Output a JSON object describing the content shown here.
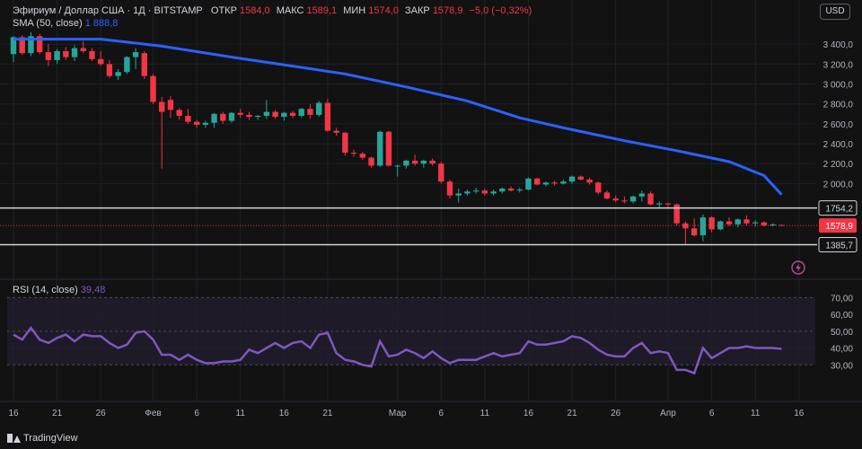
{
  "header": {
    "symbol": "Эфириум / Доллар США · 1Д · BITSTAMP",
    "open_label": "ОТКР",
    "open_value": "1584,0",
    "high_label": "МАКС",
    "high_value": "1589,1",
    "low_label": "МИН",
    "low_value": "1574,0",
    "close_label": "ЗАКР",
    "close_value": "1578,9",
    "change": "−5,0 (−0,32%)",
    "sma_label": "SMA (50, close)",
    "sma_value": "1 888,8",
    "rsi_label": "RSI (14, close)",
    "rsi_value": "39,48"
  },
  "currency": "USD",
  "branding": "TradingView",
  "colors": {
    "up": "#26a69a",
    "down": "#f23645",
    "sma": "#2962ff",
    "rsi": "#7e57c2",
    "bg": "#121212",
    "text": "#b2b5be"
  },
  "chart_data": [
    {
      "type": "candlestick",
      "title": "Эфириум / Доллар США · 1Д · BITSTAMP",
      "ylim": [
        1300,
        3600
      ],
      "yticks": [
        "3 400,0",
        "3 200,0",
        "3 000,0",
        "2 800,0",
        "2 600,0",
        "2 400,0",
        "2 200,0",
        "2 000,0"
      ],
      "ytick_values": [
        3400,
        3200,
        3000,
        2800,
        2600,
        2400,
        2200,
        2000
      ],
      "x_labels": [
        "16",
        "21",
        "26",
        "Фев",
        "6",
        "11",
        "16",
        "21",
        "Мар",
        "6",
        "11",
        "16",
        "21",
        "26",
        "Апр",
        "6",
        "11",
        "16"
      ],
      "x_label_days": [
        0,
        5,
        10,
        16,
        21,
        26,
        31,
        36,
        44,
        49,
        54,
        59,
        64,
        69,
        75,
        80,
        85,
        90
      ],
      "candles": [
        {
          "d": 0,
          "o": 3300,
          "h": 3480,
          "l": 3220,
          "c": 3470
        },
        {
          "d": 1,
          "o": 3470,
          "h": 3490,
          "l": 3290,
          "c": 3310
        },
        {
          "d": 2,
          "o": 3310,
          "h": 3520,
          "l": 3280,
          "c": 3480
        },
        {
          "d": 3,
          "o": 3480,
          "h": 3500,
          "l": 3300,
          "c": 3320
        },
        {
          "d": 4,
          "o": 3320,
          "h": 3400,
          "l": 3180,
          "c": 3240
        },
        {
          "d": 5,
          "o": 3240,
          "h": 3350,
          "l": 3200,
          "c": 3330
        },
        {
          "d": 6,
          "o": 3330,
          "h": 3370,
          "l": 3240,
          "c": 3270
        },
        {
          "d": 7,
          "o": 3270,
          "h": 3390,
          "l": 3230,
          "c": 3360
        },
        {
          "d": 8,
          "o": 3360,
          "h": 3430,
          "l": 3310,
          "c": 3330
        },
        {
          "d": 9,
          "o": 3330,
          "h": 3360,
          "l": 3230,
          "c": 3250
        },
        {
          "d": 10,
          "o": 3250,
          "h": 3330,
          "l": 3180,
          "c": 3200
        },
        {
          "d": 11,
          "o": 3200,
          "h": 3240,
          "l": 3060,
          "c": 3080
        },
        {
          "d": 12,
          "o": 3080,
          "h": 3150,
          "l": 3040,
          "c": 3120
        },
        {
          "d": 13,
          "o": 3120,
          "h": 3280,
          "l": 3100,
          "c": 3270
        },
        {
          "d": 14,
          "o": 3270,
          "h": 3360,
          "l": 3150,
          "c": 3320
        },
        {
          "d": 15,
          "o": 3310,
          "h": 3330,
          "l": 3050,
          "c": 3080
        },
        {
          "d": 16,
          "o": 3080,
          "h": 3100,
          "l": 2800,
          "c": 2820
        },
        {
          "d": 17,
          "o": 2820,
          "h": 2870,
          "l": 2150,
          "c": 2720
        },
        {
          "d": 18,
          "o": 2840,
          "h": 2880,
          "l": 2660,
          "c": 2740
        },
        {
          "d": 19,
          "o": 2740,
          "h": 2760,
          "l": 2640,
          "c": 2680
        },
        {
          "d": 20,
          "o": 2680,
          "h": 2750,
          "l": 2600,
          "c": 2620
        },
        {
          "d": 21,
          "o": 2620,
          "h": 2640,
          "l": 2560,
          "c": 2590
        },
        {
          "d": 22,
          "o": 2590,
          "h": 2630,
          "l": 2560,
          "c": 2610
        },
        {
          "d": 23,
          "o": 2610,
          "h": 2710,
          "l": 2560,
          "c": 2700
        },
        {
          "d": 24,
          "o": 2700,
          "h": 2720,
          "l": 2600,
          "c": 2630
        },
        {
          "d": 25,
          "o": 2630,
          "h": 2720,
          "l": 2610,
          "c": 2710
        },
        {
          "d": 26,
          "o": 2710,
          "h": 2750,
          "l": 2660,
          "c": 2690
        },
        {
          "d": 27,
          "o": 2690,
          "h": 2720,
          "l": 2640,
          "c": 2670
        },
        {
          "d": 28,
          "o": 2670,
          "h": 2690,
          "l": 2640,
          "c": 2680
        },
        {
          "d": 29,
          "o": 2680,
          "h": 2840,
          "l": 2650,
          "c": 2720
        },
        {
          "d": 30,
          "o": 2720,
          "h": 2740,
          "l": 2650,
          "c": 2670
        },
        {
          "d": 31,
          "o": 2670,
          "h": 2720,
          "l": 2630,
          "c": 2710
        },
        {
          "d": 32,
          "o": 2710,
          "h": 2730,
          "l": 2660,
          "c": 2680
        },
        {
          "d": 33,
          "o": 2680,
          "h": 2760,
          "l": 2660,
          "c": 2750
        },
        {
          "d": 34,
          "o": 2750,
          "h": 2800,
          "l": 2650,
          "c": 2690
        },
        {
          "d": 35,
          "o": 2690,
          "h": 2830,
          "l": 2670,
          "c": 2810
        },
        {
          "d": 36,
          "o": 2810,
          "h": 2850,
          "l": 2520,
          "c": 2530
        },
        {
          "d": 37,
          "o": 2530,
          "h": 2560,
          "l": 2480,
          "c": 2510
        },
        {
          "d": 38,
          "o": 2510,
          "h": 2520,
          "l": 2280,
          "c": 2310
        },
        {
          "d": 39,
          "o": 2310,
          "h": 2340,
          "l": 2270,
          "c": 2300
        },
        {
          "d": 40,
          "o": 2300,
          "h": 2320,
          "l": 2240,
          "c": 2260
        },
        {
          "d": 41,
          "o": 2260,
          "h": 2270,
          "l": 2160,
          "c": 2180
        },
        {
          "d": 42,
          "o": 2180,
          "h": 2530,
          "l": 2170,
          "c": 2520
        },
        {
          "d": 43,
          "o": 2520,
          "h": 2530,
          "l": 2170,
          "c": 2180
        },
        {
          "d": 44,
          "o": 2180,
          "h": 2190,
          "l": 2070,
          "c": 2180
        },
        {
          "d": 45,
          "o": 2180,
          "h": 2240,
          "l": 2150,
          "c": 2230
        },
        {
          "d": 46,
          "o": 2230,
          "h": 2290,
          "l": 2180,
          "c": 2200
        },
        {
          "d": 47,
          "o": 2200,
          "h": 2240,
          "l": 2160,
          "c": 2230
        },
        {
          "d": 48,
          "o": 2230,
          "h": 2250,
          "l": 2180,
          "c": 2200
        },
        {
          "d": 49,
          "o": 2200,
          "h": 2220,
          "l": 2000,
          "c": 2020
        },
        {
          "d": 50,
          "o": 2020,
          "h": 2040,
          "l": 1850,
          "c": 1880
        },
        {
          "d": 51,
          "o": 1880,
          "h": 1950,
          "l": 1810,
          "c": 1900
        },
        {
          "d": 52,
          "o": 1900,
          "h": 1940,
          "l": 1880,
          "c": 1920
        },
        {
          "d": 53,
          "o": 1920,
          "h": 1960,
          "l": 1900,
          "c": 1930
        },
        {
          "d": 54,
          "o": 1930,
          "h": 1950,
          "l": 1880,
          "c": 1900
        },
        {
          "d": 55,
          "o": 1900,
          "h": 1940,
          "l": 1880,
          "c": 1920
        },
        {
          "d": 56,
          "o": 1920,
          "h": 1960,
          "l": 1900,
          "c": 1950
        },
        {
          "d": 57,
          "o": 1950,
          "h": 1970,
          "l": 1920,
          "c": 1930
        },
        {
          "d": 58,
          "o": 1930,
          "h": 1960,
          "l": 1910,
          "c": 1940
        },
        {
          "d": 59,
          "o": 1940,
          "h": 2060,
          "l": 1930,
          "c": 2050
        },
        {
          "d": 60,
          "o": 2050,
          "h": 2060,
          "l": 1980,
          "c": 1990
        },
        {
          "d": 61,
          "o": 1990,
          "h": 2020,
          "l": 1970,
          "c": 2010
        },
        {
          "d": 62,
          "o": 2010,
          "h": 2030,
          "l": 1980,
          "c": 2000
        },
        {
          "d": 63,
          "o": 2000,
          "h": 2040,
          "l": 1990,
          "c": 2020
        },
        {
          "d": 64,
          "o": 2020,
          "h": 2080,
          "l": 2000,
          "c": 2070
        },
        {
          "d": 65,
          "o": 2070,
          "h": 2080,
          "l": 2030,
          "c": 2040
        },
        {
          "d": 66,
          "o": 2040,
          "h": 2060,
          "l": 1990,
          "c": 2010
        },
        {
          "d": 67,
          "o": 2010,
          "h": 2020,
          "l": 1890,
          "c": 1910
        },
        {
          "d": 68,
          "o": 1910,
          "h": 1930,
          "l": 1840,
          "c": 1850
        },
        {
          "d": 69,
          "o": 1850,
          "h": 1880,
          "l": 1810,
          "c": 1830
        },
        {
          "d": 70,
          "o": 1830,
          "h": 1870,
          "l": 1800,
          "c": 1820
        },
        {
          "d": 71,
          "o": 1820,
          "h": 1880,
          "l": 1800,
          "c": 1870
        },
        {
          "d": 72,
          "o": 1870,
          "h": 1930,
          "l": 1820,
          "c": 1900
        },
        {
          "d": 73,
          "o": 1900,
          "h": 1920,
          "l": 1780,
          "c": 1790
        },
        {
          "d": 74,
          "o": 1790,
          "h": 1820,
          "l": 1760,
          "c": 1800
        },
        {
          "d": 75,
          "o": 1800,
          "h": 1810,
          "l": 1760,
          "c": 1790
        },
        {
          "d": 76,
          "o": 1790,
          "h": 1800,
          "l": 1580,
          "c": 1600
        },
        {
          "d": 77,
          "o": 1600,
          "h": 1620,
          "l": 1380,
          "c": 1550
        },
        {
          "d": 78,
          "o": 1550,
          "h": 1650,
          "l": 1470,
          "c": 1480
        },
        {
          "d": 79,
          "o": 1480,
          "h": 1690,
          "l": 1420,
          "c": 1660
        },
        {
          "d": 80,
          "o": 1660,
          "h": 1670,
          "l": 1510,
          "c": 1540
        },
        {
          "d": 81,
          "o": 1540,
          "h": 1630,
          "l": 1530,
          "c": 1620
        },
        {
          "d": 82,
          "o": 1620,
          "h": 1660,
          "l": 1570,
          "c": 1590
        },
        {
          "d": 83,
          "o": 1590,
          "h": 1650,
          "l": 1560,
          "c": 1640
        },
        {
          "d": 84,
          "o": 1640,
          "h": 1680,
          "l": 1580,
          "c": 1600
        },
        {
          "d": 85,
          "o": 1600,
          "h": 1630,
          "l": 1570,
          "c": 1610
        },
        {
          "d": 86,
          "o": 1610,
          "h": 1620,
          "l": 1570,
          "c": 1580
        },
        {
          "d": 87,
          "o": 1580,
          "h": 1600,
          "l": 1570,
          "c": 1590
        },
        {
          "d": 88,
          "o": 1584,
          "h": 1589.1,
          "l": 1574,
          "c": 1578.9
        }
      ],
      "sma_values": [
        {
          "d": 0,
          "v": 3450
        },
        {
          "d": 10,
          "v": 3450
        },
        {
          "d": 17,
          "v": 3380
        },
        {
          "d": 25,
          "v": 3270
        },
        {
          "d": 32,
          "v": 3180
        },
        {
          "d": 38,
          "v": 3100
        },
        {
          "d": 45,
          "v": 2970
        },
        {
          "d": 52,
          "v": 2830
        },
        {
          "d": 58,
          "v": 2660
        },
        {
          "d": 63,
          "v": 2560
        },
        {
          "d": 70,
          "v": 2430
        },
        {
          "d": 76,
          "v": 2330
        },
        {
          "d": 82,
          "v": 2220
        },
        {
          "d": 86,
          "v": 2080
        },
        {
          "d": 88,
          "v": 1888.8
        }
      ],
      "levels": [
        {
          "label": "1754,2",
          "value": 1754.2
        },
        {
          "label": "1385,7",
          "value": 1385.7
        }
      ],
      "last_price": {
        "label": "1578,9",
        "value": 1578.9
      },
      "grid": true
    },
    {
      "type": "line",
      "title": "RSI (14, close)",
      "ylim": [
        20,
        75
      ],
      "yticks": [
        "70,00",
        "60,00",
        "50,00",
        "40,00",
        "30,00"
      ],
      "ytick_values": [
        70,
        60,
        50,
        40,
        30
      ],
      "band": [
        30,
        70
      ],
      "points": [
        {
          "d": 0,
          "v": 48
        },
        {
          "d": 1,
          "v": 45
        },
        {
          "d": 2,
          "v": 52
        },
        {
          "d": 3,
          "v": 45
        },
        {
          "d": 4,
          "v": 43
        },
        {
          "d": 5,
          "v": 46
        },
        {
          "d": 6,
          "v": 48
        },
        {
          "d": 7,
          "v": 44
        },
        {
          "d": 8,
          "v": 48
        },
        {
          "d": 9,
          "v": 47
        },
        {
          "d": 10,
          "v": 47
        },
        {
          "d": 11,
          "v": 43
        },
        {
          "d": 12,
          "v": 40
        },
        {
          "d": 13,
          "v": 42
        },
        {
          "d": 14,
          "v": 49
        },
        {
          "d": 15,
          "v": 50
        },
        {
          "d": 16,
          "v": 45
        },
        {
          "d": 17,
          "v": 36
        },
        {
          "d": 18,
          "v": 36
        },
        {
          "d": 19,
          "v": 33
        },
        {
          "d": 20,
          "v": 36
        },
        {
          "d": 21,
          "v": 33
        },
        {
          "d": 22,
          "v": 31
        },
        {
          "d": 23,
          "v": 31
        },
        {
          "d": 24,
          "v": 32
        },
        {
          "d": 25,
          "v": 32
        },
        {
          "d": 26,
          "v": 33
        },
        {
          "d": 27,
          "v": 39
        },
        {
          "d": 28,
          "v": 37
        },
        {
          "d": 29,
          "v": 40
        },
        {
          "d": 30,
          "v": 43
        },
        {
          "d": 31,
          "v": 40
        },
        {
          "d": 32,
          "v": 43
        },
        {
          "d": 33,
          "v": 44
        },
        {
          "d": 34,
          "v": 40
        },
        {
          "d": 35,
          "v": 48
        },
        {
          "d": 36,
          "v": 49
        },
        {
          "d": 37,
          "v": 37
        },
        {
          "d": 38,
          "v": 33
        },
        {
          "d": 39,
          "v": 32
        },
        {
          "d": 40,
          "v": 30
        },
        {
          "d": 41,
          "v": 29
        },
        {
          "d": 42,
          "v": 44
        },
        {
          "d": 43,
          "v": 35
        },
        {
          "d": 44,
          "v": 36
        },
        {
          "d": 45,
          "v": 39
        },
        {
          "d": 46,
          "v": 37
        },
        {
          "d": 47,
          "v": 34
        },
        {
          "d": 48,
          "v": 38
        },
        {
          "d": 49,
          "v": 34
        },
        {
          "d": 50,
          "v": 31
        },
        {
          "d": 51,
          "v": 33
        },
        {
          "d": 52,
          "v": 33
        },
        {
          "d": 53,
          "v": 33
        },
        {
          "d": 54,
          "v": 35
        },
        {
          "d": 55,
          "v": 37
        },
        {
          "d": 56,
          "v": 35
        },
        {
          "d": 57,
          "v": 36
        },
        {
          "d": 58,
          "v": 37
        },
        {
          "d": 59,
          "v": 44
        },
        {
          "d": 60,
          "v": 42
        },
        {
          "d": 61,
          "v": 42
        },
        {
          "d": 62,
          "v": 43
        },
        {
          "d": 63,
          "v": 44
        },
        {
          "d": 64,
          "v": 47
        },
        {
          "d": 65,
          "v": 46
        },
        {
          "d": 66,
          "v": 43
        },
        {
          "d": 67,
          "v": 39
        },
        {
          "d": 68,
          "v": 36
        },
        {
          "d": 69,
          "v": 35
        },
        {
          "d": 70,
          "v": 35
        },
        {
          "d": 71,
          "v": 40
        },
        {
          "d": 72,
          "v": 43
        },
        {
          "d": 73,
          "v": 37
        },
        {
          "d": 74,
          "v": 38
        },
        {
          "d": 75,
          "v": 37
        },
        {
          "d": 76,
          "v": 27
        },
        {
          "d": 77,
          "v": 27
        },
        {
          "d": 78,
          "v": 25
        },
        {
          "d": 79,
          "v": 40
        },
        {
          "d": 80,
          "v": 34
        },
        {
          "d": 81,
          "v": 37
        },
        {
          "d": 82,
          "v": 40
        },
        {
          "d": 83,
          "v": 40
        },
        {
          "d": 84,
          "v": 41
        },
        {
          "d": 85,
          "v": 40
        },
        {
          "d": 86,
          "v": 40
        },
        {
          "d": 87,
          "v": 40
        },
        {
          "d": 88,
          "v": 39.48
        }
      ]
    }
  ]
}
